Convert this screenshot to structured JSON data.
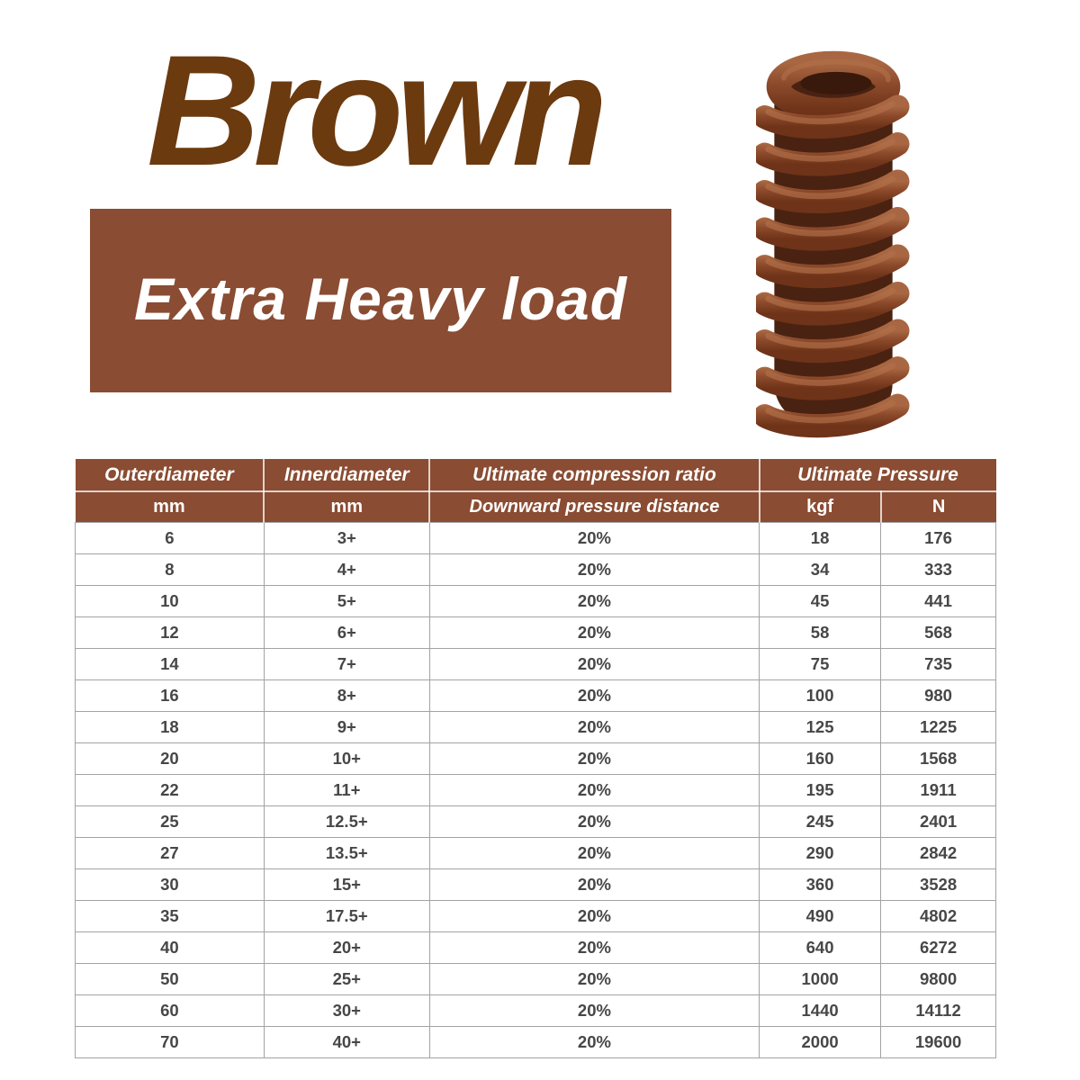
{
  "header": {
    "title": "Brown",
    "banner_label": "Extra Heavy load"
  },
  "colors": {
    "brand": "#8a4c32",
    "title_color": "#6b3a0f",
    "table_border": "#a3a3a3",
    "cell_text": "#474747",
    "coil_dark": "#4a2212",
    "coil_mid": "#8c4a2b",
    "coil_light": "#b2704a"
  },
  "spring_image": {
    "name": "brown-die-spring",
    "coil_color": "#8c4a2b"
  },
  "table": {
    "columns": [
      {
        "group": "Outerdiameter",
        "unit": "mm"
      },
      {
        "group": "Innerdiameter",
        "unit": "mm"
      },
      {
        "group": "Ultimate compression ratio",
        "unit": "Downward pressure distance"
      },
      {
        "group": "Ultimate Pressure",
        "units": [
          "kgf",
          "N"
        ]
      }
    ],
    "rows": [
      [
        "6",
        "3+",
        "20%",
        "18",
        "176"
      ],
      [
        "8",
        "4+",
        "20%",
        "34",
        "333"
      ],
      [
        "10",
        "5+",
        "20%",
        "45",
        "441"
      ],
      [
        "12",
        "6+",
        "20%",
        "58",
        "568"
      ],
      [
        "14",
        "7+",
        "20%",
        "75",
        "735"
      ],
      [
        "16",
        "8+",
        "20%",
        "100",
        "980"
      ],
      [
        "18",
        "9+",
        "20%",
        "125",
        "1225"
      ],
      [
        "20",
        "10+",
        "20%",
        "160",
        "1568"
      ],
      [
        "22",
        "11+",
        "20%",
        "195",
        "1911"
      ],
      [
        "25",
        "12.5+",
        "20%",
        "245",
        "2401"
      ],
      [
        "27",
        "13.5+",
        "20%",
        "290",
        "2842"
      ],
      [
        "30",
        "15+",
        "20%",
        "360",
        "3528"
      ],
      [
        "35",
        "17.5+",
        "20%",
        "490",
        "4802"
      ],
      [
        "40",
        "20+",
        "20%",
        "640",
        "6272"
      ],
      [
        "50",
        "25+",
        "20%",
        "1000",
        "9800"
      ],
      [
        "60",
        "30+",
        "20%",
        "1440",
        "14112"
      ],
      [
        "70",
        "40+",
        "20%",
        "2000",
        "19600"
      ]
    ]
  }
}
